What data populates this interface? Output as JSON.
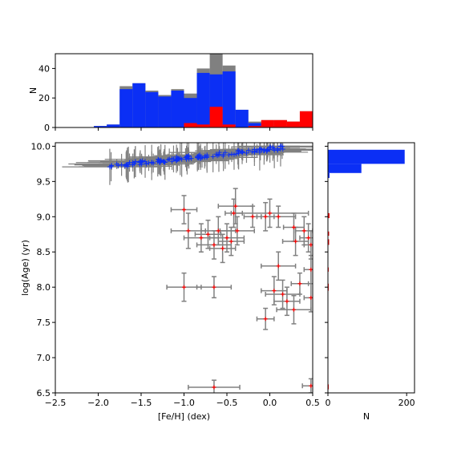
{
  "chart_data": [
    {
      "panel": "top-histogram",
      "type": "bar",
      "ylabel": "N",
      "ylim": [
        0,
        50
      ],
      "yticks": [
        "0",
        "20",
        "40"
      ],
      "xlim": [
        -2.5,
        0.5
      ],
      "bin_edges": [
        -2.5,
        -2.35,
        -2.2,
        -2.05,
        -1.9,
        -1.75,
        -1.6,
        -1.45,
        -1.3,
        -1.15,
        -1.0,
        -0.85,
        -0.7,
        -0.55,
        -0.4,
        -0.25,
        -0.1,
        0.05,
        0.2,
        0.35,
        0.5
      ],
      "series": [
        {
          "color": "#808080",
          "values": [
            0,
            0,
            0,
            1,
            2,
            28,
            30,
            25,
            22,
            26,
            23,
            40,
            50,
            42,
            12,
            4,
            5,
            5,
            4,
            11
          ]
        },
        {
          "color": "#0b2ff5",
          "values": [
            0,
            0,
            0,
            1,
            2,
            26,
            30,
            24,
            21,
            25,
            20,
            37,
            36,
            38,
            12,
            3,
            0,
            0,
            0,
            0
          ]
        },
        {
          "color": "#ff0000",
          "values": [
            0,
            0,
            0,
            0,
            0,
            0,
            0,
            0,
            0,
            0,
            3,
            2,
            14,
            2,
            0,
            1,
            5,
            5,
            4,
            11
          ]
        }
      ]
    },
    {
      "panel": "scatter",
      "type": "scatter",
      "xlabel": "[Fe/H] (dex)",
      "ylabel": "log(Age) (yr)",
      "xlim": [
        -2.5,
        0.5
      ],
      "ylim": [
        6.5,
        10.05
      ],
      "xticks": [
        "−2.5",
        "−2.0",
        "−1.5",
        "−1.0",
        "−0.5",
        "0.0",
        "0.5"
      ],
      "yticks": [
        "6.5",
        "7.0",
        "7.5",
        "8.0",
        "8.5",
        "9.0",
        "9.5",
        "10.0"
      ],
      "blue_trend": {
        "x_start": -1.85,
        "y_start": 9.72,
        "x_end": 0.15,
        "y_end": 9.98,
        "n_points": 140
      },
      "red_points": [
        {
          "x": -1.0,
          "y": 9.1,
          "xerr": 0.15,
          "yerr": 0.2
        },
        {
          "x": -0.42,
          "y": 9.05,
          "xerr": 0.1,
          "yerr": 0.2
        },
        {
          "x": -0.4,
          "y": 9.15,
          "xerr": 0.2,
          "yerr": 0.25
        },
        {
          "x": -0.2,
          "y": 9.0,
          "xerr": 0.1,
          "yerr": 0.15
        },
        {
          "x": -0.05,
          "y": 9.0,
          "xerr": 0.1,
          "yerr": 0.2
        },
        {
          "x": 0.0,
          "y": 9.05,
          "xerr": 0.45,
          "yerr": 0.2
        },
        {
          "x": 0.1,
          "y": 9.0,
          "xerr": 0.2,
          "yerr": 0.15
        },
        {
          "x": 0.28,
          "y": 8.85,
          "xerr": 0.12,
          "yerr": 0.2
        },
        {
          "x": 0.4,
          "y": 8.8,
          "xerr": 0.1,
          "yerr": 0.2
        },
        {
          "x": 0.45,
          "y": 8.7,
          "xerr": 0.1,
          "yerr": 0.2
        },
        {
          "x": 0.3,
          "y": 8.65,
          "xerr": 0.15,
          "yerr": 0.2
        },
        {
          "x": 0.48,
          "y": 8.6,
          "xerr": 0.08,
          "yerr": 0.2
        },
        {
          "x": -0.95,
          "y": 8.8,
          "xerr": 0.2,
          "yerr": 0.25
        },
        {
          "x": -0.8,
          "y": 8.7,
          "xerr": 0.2,
          "yerr": 0.2
        },
        {
          "x": -0.72,
          "y": 8.75,
          "xerr": 0.15,
          "yerr": 0.2
        },
        {
          "x": -0.65,
          "y": 8.6,
          "xerr": 0.2,
          "yerr": 0.2
        },
        {
          "x": -0.6,
          "y": 8.8,
          "xerr": 0.2,
          "yerr": 0.2
        },
        {
          "x": -0.55,
          "y": 8.55,
          "xerr": 0.15,
          "yerr": 0.2
        },
        {
          "x": -0.5,
          "y": 8.7,
          "xerr": 0.2,
          "yerr": 0.2
        },
        {
          "x": -0.45,
          "y": 8.65,
          "xerr": 0.15,
          "yerr": 0.2
        },
        {
          "x": -0.38,
          "y": 8.8,
          "xerr": 0.2,
          "yerr": 0.2
        },
        {
          "x": 0.1,
          "y": 8.3,
          "xerr": 0.2,
          "yerr": 0.2
        },
        {
          "x": 0.48,
          "y": 8.25,
          "xerr": 0.08,
          "yerr": 0.2
        },
        {
          "x": 0.35,
          "y": 8.05,
          "xerr": 0.1,
          "yerr": 0.15
        },
        {
          "x": 0.05,
          "y": 7.95,
          "xerr": 0.15,
          "yerr": 0.2
        },
        {
          "x": 0.15,
          "y": 7.9,
          "xerr": 0.2,
          "yerr": 0.2
        },
        {
          "x": 0.2,
          "y": 7.8,
          "xerr": 0.15,
          "yerr": 0.2
        },
        {
          "x": 0.28,
          "y": 7.68,
          "xerr": 0.2,
          "yerr": 0.2
        },
        {
          "x": 0.48,
          "y": 7.85,
          "xerr": 0.08,
          "yerr": 0.2
        },
        {
          "x": -0.05,
          "y": 7.55,
          "xerr": 0.1,
          "yerr": 0.15
        },
        {
          "x": -1.0,
          "y": 8.0,
          "xerr": 0.2,
          "yerr": 0.2
        },
        {
          "x": -0.65,
          "y": 8.0,
          "xerr": 0.2,
          "yerr": 0.15
        },
        {
          "x": -0.65,
          "y": 6.58,
          "xerr": 0.3,
          "yerr": 0.1
        },
        {
          "x": 0.48,
          "y": 6.6,
          "xerr": 0.1,
          "yerr": 0.1
        }
      ]
    },
    {
      "panel": "right-histogram",
      "type": "bar",
      "orientation": "horizontal",
      "xlabel": "N",
      "xlim": [
        0,
        220
      ],
      "xticks": [
        "0",
        "200"
      ],
      "bins": [
        {
          "y0": 9.75,
          "y1": 9.95,
          "value": 195,
          "color": "#0b2ff5"
        },
        {
          "y0": 9.62,
          "y1": 9.75,
          "value": 85,
          "color": "#0b2ff5"
        },
        {
          "y0": 9.55,
          "y1": 9.62,
          "value": 4,
          "color": "#0b2ff5"
        },
        {
          "y0": 8.98,
          "y1": 9.05,
          "value": 4,
          "color": "#ff0000"
        },
        {
          "y0": 8.73,
          "y1": 8.79,
          "value": 3,
          "color": "#ff0000"
        },
        {
          "y0": 8.6,
          "y1": 8.68,
          "value": 3,
          "color": "#ff0000"
        },
        {
          "y0": 8.22,
          "y1": 8.28,
          "value": 2,
          "color": "#ff0000"
        },
        {
          "y0": 7.95,
          "y1": 8.05,
          "value": 2,
          "color": "#ff0000"
        },
        {
          "y0": 6.55,
          "y1": 6.62,
          "value": 2,
          "color": "#ff0000"
        }
      ]
    }
  ]
}
